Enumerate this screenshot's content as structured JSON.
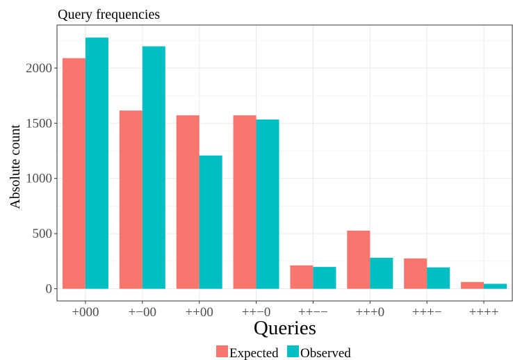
{
  "chart_data": {
    "type": "bar",
    "title": "Query frequencies",
    "xlabel": "Queries",
    "ylabel": "Absolute count",
    "categories": [
      "+000",
      "+−00",
      "++00",
      "++−0",
      "++−−",
      "+++0",
      "+++−",
      "++++"
    ],
    "series": [
      {
        "name": "Expected",
        "color": "#F8766D",
        "values": [
          2090,
          1615,
          1572,
          1572,
          212,
          527,
          275,
          62
        ]
      },
      {
        "name": "Observed",
        "color": "#00BFC4",
        "values": [
          2276,
          2197,
          1208,
          1534,
          198,
          281,
          194,
          45
        ]
      }
    ],
    "ylim": [
      -110,
      2390
    ],
    "yticks": [
      0,
      500,
      1000,
      1500,
      2000
    ],
    "grid": true,
    "legend": "bottom"
  }
}
